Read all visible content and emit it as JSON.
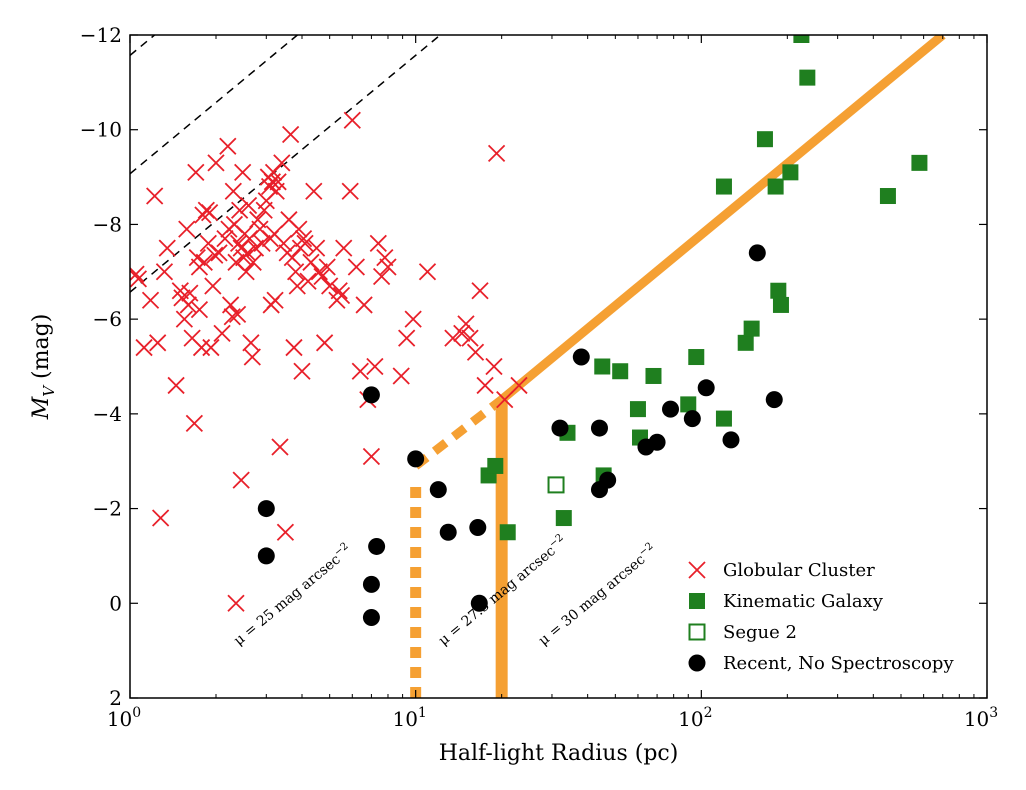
{
  "chart_data": {
    "type": "scatter",
    "x_scale": "log",
    "xlim": [
      1,
      1000
    ],
    "ylim": [
      2,
      -12
    ],
    "xlabel": "Half-light Radius (pc)",
    "ylabel_main": "M",
    "ylabel_sub": "V",
    "ylabel_unit": " (mag)",
    "x_ticks": [
      {
        "value": 1,
        "base": "10",
        "exp": "0"
      },
      {
        "value": 10,
        "base": "10",
        "exp": "1"
      },
      {
        "value": 100,
        "base": "10",
        "exp": "2"
      },
      {
        "value": 1000,
        "base": "10",
        "exp": "3"
      }
    ],
    "y_ticks": [
      {
        "value": -12,
        "label": "−12"
      },
      {
        "value": -10,
        "label": "−10"
      },
      {
        "value": -8,
        "label": "−8"
      },
      {
        "value": -6,
        "label": "−6"
      },
      {
        "value": -4,
        "label": "−4"
      },
      {
        "value": -2,
        "label": "−2"
      },
      {
        "value": 0,
        "label": "0"
      },
      {
        "value": 2,
        "label": "2"
      }
    ],
    "grid": false,
    "legend_position": "bottom-right",
    "reference_lines": [
      {
        "mu": 25,
        "label_prefix": "μ = 25 mag arcsec",
        "label_exp": "−2",
        "label_x": 2.4,
        "label_y": 0.9
      },
      {
        "mu": 27.5,
        "label_prefix": "μ = 27.5 mag arcsec",
        "label_exp": "−2",
        "label_x": 12.5,
        "label_y": 0.9
      },
      {
        "mu": 30,
        "label_prefix": "μ = 30 mag arcsec",
        "label_exp": "−2",
        "label_x": 28,
        "label_y": 0.9
      }
    ],
    "selection_boundary": {
      "solid_upper": [
        [
          20,
          -4.3
        ],
        [
          700,
          -12
        ]
      ],
      "dashed_upper": [
        [
          10,
          -2.9
        ],
        [
          20,
          -4.3
        ]
      ],
      "solid_vertical": [
        [
          20,
          2
        ],
        [
          20,
          -4.3
        ]
      ],
      "dotted_vertical": [
        [
          10,
          2
        ],
        [
          10,
          -2.6
        ]
      ]
    },
    "series": [
      {
        "name": "Globular Cluster",
        "marker": "x",
        "color": "#e8202a",
        "points": [
          [
            1.05,
            -6.95
          ],
          [
            1.07,
            -6.85
          ],
          [
            1.12,
            -5.4
          ],
          [
            1.18,
            -6.4
          ],
          [
            1.22,
            -8.6
          ],
          [
            1.25,
            -5.5
          ],
          [
            1.28,
            -1.8
          ],
          [
            1.32,
            -7.0
          ],
          [
            1.35,
            -7.5
          ],
          [
            1.45,
            -4.6
          ],
          [
            1.5,
            -6.6
          ],
          [
            1.52,
            -6.45
          ],
          [
            1.55,
            -6.0
          ],
          [
            1.58,
            -7.9
          ],
          [
            1.6,
            -6.3
          ],
          [
            1.62,
            -6.55
          ],
          [
            1.65,
            -5.6
          ],
          [
            1.68,
            -3.8
          ],
          [
            1.7,
            -9.1
          ],
          [
            1.72,
            -7.3
          ],
          [
            1.75,
            -7.1
          ],
          [
            1.75,
            -6.2
          ],
          [
            1.78,
            -5.4
          ],
          [
            1.8,
            -8.2
          ],
          [
            1.82,
            -7.2
          ],
          [
            1.85,
            -8.3
          ],
          [
            1.88,
            -7.6
          ],
          [
            1.9,
            -8.25
          ],
          [
            1.92,
            -5.4
          ],
          [
            1.95,
            -6.7
          ],
          [
            1.98,
            -7.35
          ],
          [
            2.0,
            -9.3
          ],
          [
            2.05,
            -7.4
          ],
          [
            2.1,
            -5.7
          ],
          [
            2.15,
            -7.7
          ],
          [
            2.2,
            -9.65
          ],
          [
            2.22,
            -7.9
          ],
          [
            2.25,
            -6.3
          ],
          [
            2.28,
            -6.05
          ],
          [
            2.3,
            -8.7
          ],
          [
            2.32,
            -8.0
          ],
          [
            2.35,
            -7.2
          ],
          [
            2.38,
            -6.1
          ],
          [
            2.4,
            -7.6
          ],
          [
            2.42,
            -8.3
          ],
          [
            2.45,
            -7.5
          ],
          [
            2.45,
            -2.6
          ],
          [
            2.35,
            0.0
          ],
          [
            2.48,
            -9.1
          ],
          [
            2.5,
            -7.3
          ],
          [
            2.52,
            -7.8
          ],
          [
            2.55,
            -7.0
          ],
          [
            2.58,
            -7.4
          ],
          [
            2.6,
            -8.4
          ],
          [
            2.62,
            -7.7
          ],
          [
            2.65,
            -5.5
          ],
          [
            2.68,
            -5.2
          ],
          [
            2.7,
            -7.2
          ],
          [
            2.75,
            -7.5
          ],
          [
            2.8,
            -8.1
          ],
          [
            2.85,
            -7.9
          ],
          [
            2.9,
            -7.6
          ],
          [
            2.95,
            -8.3
          ],
          [
            3.0,
            -8.5
          ],
          [
            3.05,
            -9.0
          ],
          [
            3.08,
            -8.8
          ],
          [
            3.1,
            -7.7
          ],
          [
            3.12,
            -6.3
          ],
          [
            3.15,
            -8.9
          ],
          [
            3.18,
            -9.1
          ],
          [
            3.2,
            -7.8
          ],
          [
            3.22,
            -6.4
          ],
          [
            3.25,
            -8.7
          ],
          [
            3.3,
            -8.9
          ],
          [
            3.35,
            -3.3
          ],
          [
            3.4,
            -9.3
          ],
          [
            3.45,
            -7.6
          ],
          [
            3.5,
            -1.5
          ],
          [
            3.55,
            -7.4
          ],
          [
            3.6,
            -8.1
          ],
          [
            3.65,
            -9.9
          ],
          [
            3.7,
            -7.3
          ],
          [
            3.75,
            -5.4
          ],
          [
            3.8,
            -7.0
          ],
          [
            3.85,
            -6.7
          ],
          [
            3.9,
            -7.9
          ],
          [
            3.95,
            -7.5
          ],
          [
            4.0,
            -4.9
          ],
          [
            4.05,
            -7.7
          ],
          [
            4.1,
            -7.6
          ],
          [
            4.2,
            -6.8
          ],
          [
            4.3,
            -7.2
          ],
          [
            4.4,
            -8.7
          ],
          [
            4.5,
            -7.5
          ],
          [
            4.6,
            -7.0
          ],
          [
            4.7,
            -6.9
          ],
          [
            4.8,
            -5.5
          ],
          [
            4.9,
            -7.1
          ],
          [
            5.0,
            -6.7
          ],
          [
            5.3,
            -6.4
          ],
          [
            5.4,
            -6.6
          ],
          [
            5.5,
            -6.5
          ],
          [
            5.6,
            -7.5
          ],
          [
            5.9,
            -8.7
          ],
          [
            6.0,
            -10.2
          ],
          [
            6.2,
            -7.1
          ],
          [
            6.4,
            -4.9
          ],
          [
            6.6,
            -6.3
          ],
          [
            6.8,
            -4.3
          ],
          [
            7.0,
            -3.1
          ],
          [
            7.2,
            -5.0
          ],
          [
            7.4,
            -7.6
          ],
          [
            7.6,
            -6.9
          ],
          [
            7.8,
            -7.3
          ],
          [
            8.0,
            -7.1
          ],
          [
            8.9,
            -4.8
          ],
          [
            9.3,
            -5.6
          ],
          [
            9.8,
            -6.0
          ],
          [
            11.0,
            -7.0
          ],
          [
            13.5,
            -5.6
          ],
          [
            14.5,
            -5.7
          ],
          [
            15.0,
            -5.9
          ],
          [
            15.5,
            -5.6
          ],
          [
            16.2,
            -5.3
          ],
          [
            16.8,
            -6.6
          ],
          [
            17.5,
            -4.6
          ],
          [
            18.8,
            -5.0
          ],
          [
            19.2,
            -9.5
          ],
          [
            20.5,
            -4.3
          ],
          [
            23.0,
            -4.6
          ]
        ]
      },
      {
        "name": "Kinematic Galaxy",
        "marker": "square",
        "color": "#1f7f1f",
        "points": [
          [
            18.0,
            -2.7
          ],
          [
            19.0,
            -2.9
          ],
          [
            21.0,
            -1.5
          ],
          [
            33.0,
            -1.8
          ],
          [
            34.0,
            -3.6
          ],
          [
            45.0,
            -5.0
          ],
          [
            45.5,
            -2.7
          ],
          [
            52.0,
            -4.9
          ],
          [
            60.0,
            -4.1
          ],
          [
            61.0,
            -3.5
          ],
          [
            68.0,
            -4.8
          ],
          [
            90.0,
            -4.2
          ],
          [
            96.0,
            -5.2
          ],
          [
            120.0,
            -3.9
          ],
          [
            120.0,
            -8.8
          ],
          [
            143.0,
            -5.5
          ],
          [
            150.0,
            -5.8
          ],
          [
            167.0,
            -9.8
          ],
          [
            182.0,
            -8.8
          ],
          [
            186.0,
            -6.6
          ],
          [
            190.0,
            -6.3
          ],
          [
            205.0,
            -9.1
          ],
          [
            224.0,
            -12.0
          ],
          [
            235.0,
            -11.1
          ],
          [
            450.0,
            -8.6
          ],
          [
            580.0,
            -9.3
          ]
        ]
      },
      {
        "name": "Segue 2",
        "marker": "open-square",
        "color": "#1f7f1f",
        "points": [
          [
            31.0,
            -2.5
          ]
        ]
      },
      {
        "name": "Recent, No Spectroscopy",
        "marker": "circle",
        "color": "#000000",
        "points": [
          [
            3.0,
            -2.0
          ],
          [
            3.0,
            -1.0
          ],
          [
            7.0,
            -4.4
          ],
          [
            7.0,
            -0.4
          ],
          [
            7.0,
            0.3
          ],
          [
            7.3,
            -1.2
          ],
          [
            10.0,
            -3.05
          ],
          [
            12.0,
            -2.4
          ],
          [
            13.0,
            -1.5
          ],
          [
            16.5,
            -1.6
          ],
          [
            16.7,
            0.0
          ],
          [
            32.0,
            -3.7
          ],
          [
            38.0,
            -5.2
          ],
          [
            44.0,
            -3.7
          ],
          [
            44.0,
            -2.4
          ],
          [
            47.0,
            -2.6
          ],
          [
            64.0,
            -3.3
          ],
          [
            70.0,
            -3.4
          ],
          [
            78.0,
            -4.1
          ],
          [
            93.0,
            -3.9
          ],
          [
            104.0,
            -4.55
          ],
          [
            127.0,
            -3.45
          ],
          [
            157.0,
            -7.4
          ],
          [
            180.0,
            -4.3
          ]
        ]
      }
    ]
  }
}
